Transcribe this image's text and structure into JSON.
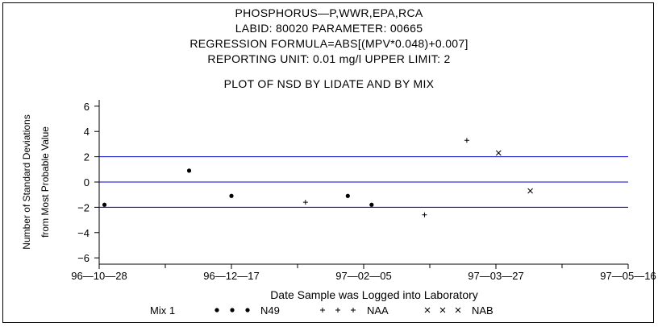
{
  "titles": [
    "PHOSPHORUS—P,WWR,EPA,RCA",
    "LABID: 80020 PARAMETER: 00665",
    "REGRESSION FORMULA=ABS[(MPV*0.048)+0.007]",
    "REPORTING UNIT: 0.01 mg/l   UPPER LIMIT: 2"
  ],
  "chart_data": {
    "type": "scatter",
    "title": "PLOT OF NSD BY LIDATE AND BY MIX",
    "xlabel": "Date Sample was Logged into Laboratory",
    "ylabel": [
      "Number of Standard Deviations",
      "from Most Probable Value"
    ],
    "x_ticks": [
      {
        "label": "96—10—28",
        "date": "1996-10-28"
      },
      {
        "label": "96—12—17",
        "date": "1996-12-17"
      },
      {
        "label": "97—02—05",
        "date": "1997-02-05"
      },
      {
        "label": "97—03—27",
        "date": "1997-03-27"
      },
      {
        "label": "97—05—16",
        "date": "1997-05-16"
      }
    ],
    "x_minor_ticks": [
      "1996-11-22",
      "1997-01-11",
      "1997-03-02",
      "1997-04-21"
    ],
    "xlim": [
      "1996-10-28",
      "1997-05-16"
    ],
    "y_ticks": [
      6,
      4,
      2,
      0,
      -2,
      -4,
      -6
    ],
    "ylim": [
      -6.5,
      6.5
    ],
    "reference_lines": [
      2,
      0,
      -2
    ],
    "reference_color": "#0000cc",
    "legend_label": "Mix 1",
    "series": [
      {
        "name": "N49",
        "marker": "dot",
        "points": [
          {
            "x": "1996-10-30",
            "y": -1.8
          },
          {
            "x": "1996-12-01",
            "y": 0.9
          },
          {
            "x": "1996-12-17",
            "y": -1.1
          },
          {
            "x": "1997-01-30",
            "y": -1.1
          },
          {
            "x": "1997-02-08",
            "y": -1.8
          }
        ]
      },
      {
        "name": "NAA",
        "marker": "plus",
        "points": [
          {
            "x": "1997-01-14",
            "y": -1.6
          },
          {
            "x": "1997-02-28",
            "y": -2.6
          },
          {
            "x": "1997-03-16",
            "y": 3.3
          }
        ]
      },
      {
        "name": "NAB",
        "marker": "x",
        "points": [
          {
            "x": "1997-03-28",
            "y": 2.3
          },
          {
            "x": "1997-04-09",
            "y": -0.7
          }
        ]
      }
    ]
  }
}
